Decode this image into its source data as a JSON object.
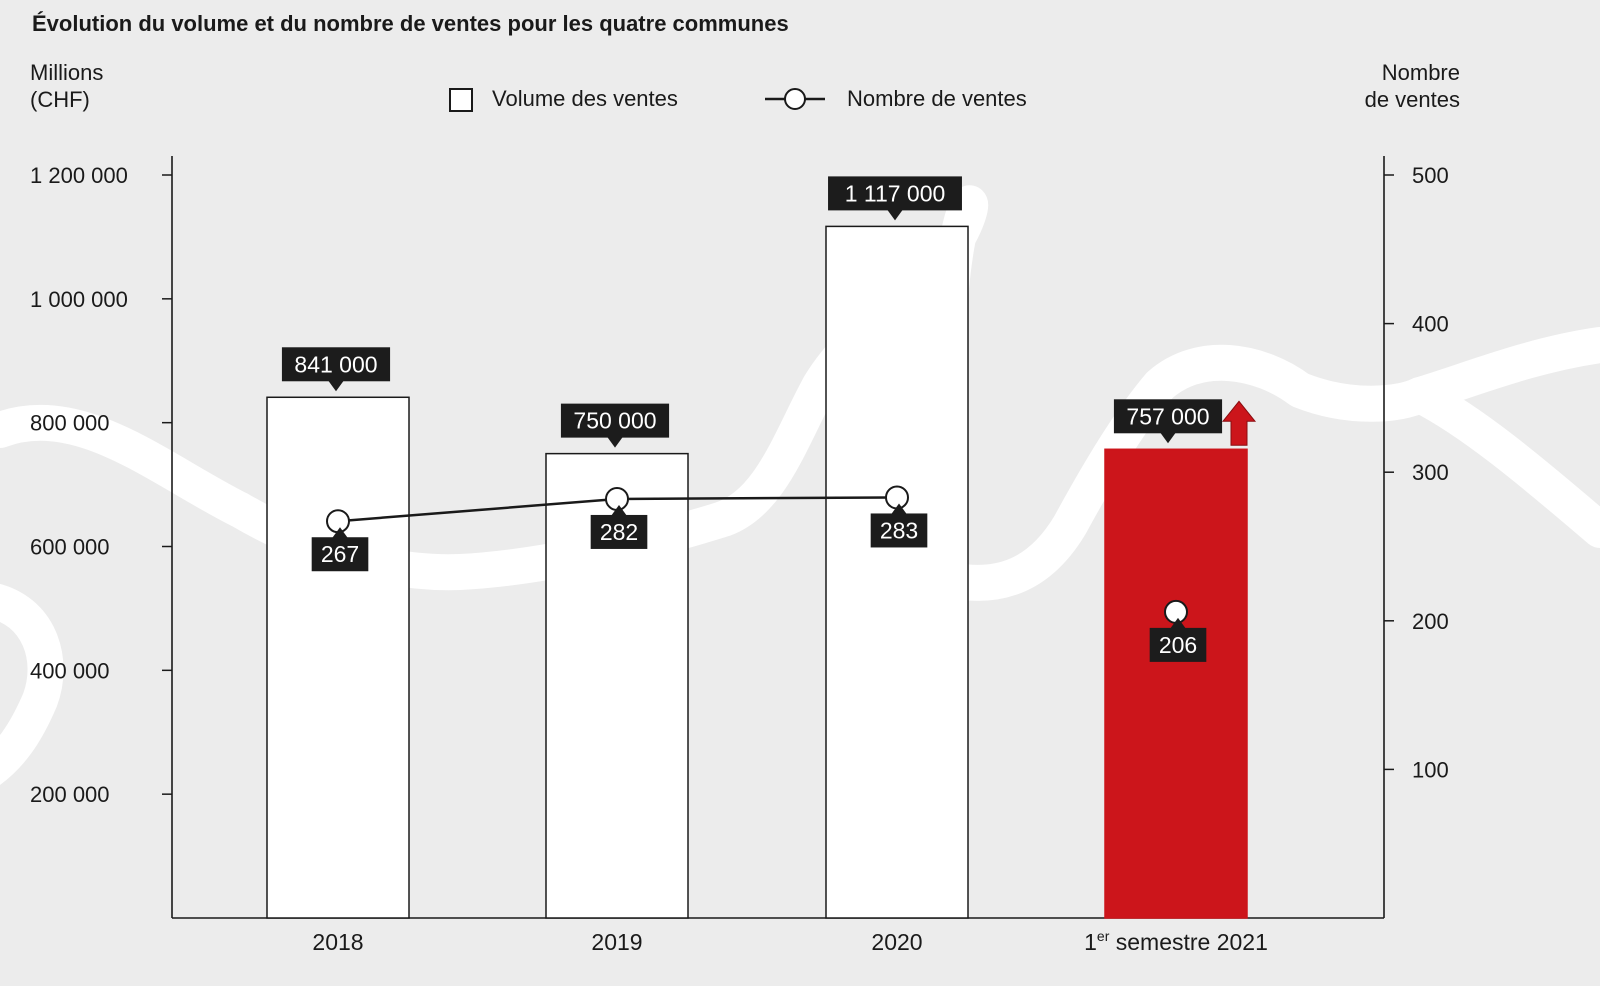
{
  "chart_data": {
    "type": "bar",
    "title": "Évolution du volume et du nombre de ventes pour les quatre communes",
    "y_left_label_line1": "Millions",
    "y_left_label_line2": "(CHF)",
    "y_right_label_line1": "Nombre",
    "y_right_label_line2": "de ventes",
    "legend": {
      "bars": "Volume des ventes",
      "line": "Nombre de ventes"
    },
    "categories": [
      {
        "label": "2018",
        "sup": "",
        "suffix": ""
      },
      {
        "label": "2019",
        "sup": "",
        "suffix": ""
      },
      {
        "label": "2020",
        "sup": "",
        "suffix": ""
      },
      {
        "label": "1",
        "sup": "er",
        "suffix": " semestre 2021"
      }
    ],
    "series": [
      {
        "name": "Volume des ventes",
        "axis": "left",
        "values": [
          841000,
          750000,
          1117000,
          757000
        ],
        "value_labels": [
          "841 000",
          "750 000",
          "1 117 000",
          "757 000"
        ],
        "highlight_index": 3
      },
      {
        "name": "Nombre de ventes",
        "axis": "right",
        "values": [
          267,
          282,
          283,
          206
        ],
        "value_labels": [
          "267",
          "282",
          "283",
          "206"
        ],
        "connected_indices": [
          0,
          1,
          2
        ]
      }
    ],
    "y_left": {
      "ylim": [
        0,
        1200000
      ],
      "ticks": [
        200000,
        400000,
        600000,
        800000,
        1000000,
        1200000
      ],
      "tick_labels": [
        "200 000",
        "400 000",
        "600 000",
        "800 000",
        "1 000 000",
        "1 200 000"
      ]
    },
    "y_right": {
      "ylim": [
        0,
        500
      ],
      "ticks": [
        100,
        200,
        300,
        400,
        500
      ],
      "tick_labels": [
        "100",
        "200",
        "300",
        "400",
        "500"
      ]
    },
    "annotations": [
      "trend-up-arrow"
    ],
    "colors": {
      "bar": "#ffffff",
      "highlight_bar": "#cc151b",
      "label_box": "#1c1c1c",
      "label_text": "#ffffff",
      "line": "#1a1a1a",
      "background": "#ececec",
      "decor_river": "#ffffff"
    },
    "grid": false,
    "legend_position": "top-center"
  }
}
